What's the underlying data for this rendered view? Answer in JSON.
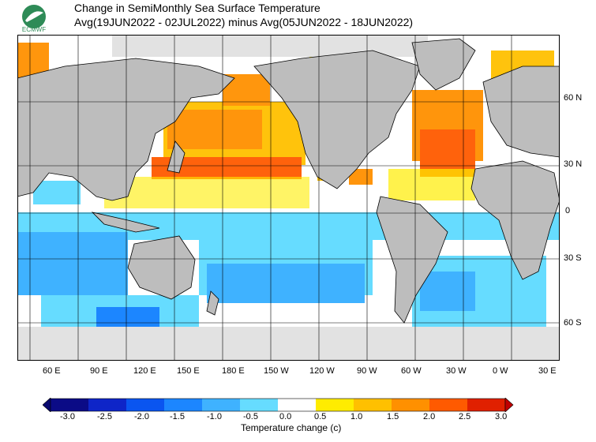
{
  "title": {
    "line1": "Change in SemiMonthly Sea Surface Temperature",
    "line2": "Avg(19JUN2022 - 02JUL2022) minus Avg(05JUN2022 - 18JUN2022)"
  },
  "logo_text": "ECMWF",
  "map": {
    "projection": "equirectangular",
    "lon_range": [
      "40 E",
      "40 E"
    ],
    "lat_range": [
      "90 S",
      "90 N"
    ],
    "grid": true,
    "lon_ticks": [
      "60 E",
      "90 E",
      "120 E",
      "150 E",
      "180 E",
      "150 W",
      "120 W",
      "90 W",
      "60 W",
      "30 W",
      "0 W",
      "30 E"
    ],
    "lat_ticks": [
      "60 N",
      "30 N",
      "0",
      "30 S",
      "60 S"
    ],
    "colors": {
      "land": "#bdbdbd",
      "ice": "#e2e2e2",
      "coast": "#000000"
    }
  },
  "colorbar": {
    "title": "Temperature change  (c)",
    "labels": [
      "-3.0",
      "-2.5",
      "-2.0",
      "-1.5",
      "-1.0",
      "-0.5",
      "0.0",
      "0.5",
      "1.0",
      "1.5",
      "2.0",
      "2.5",
      "3.0"
    ],
    "colors": [
      "#0b0b86",
      "#0e25c8",
      "#0a55f0",
      "#1c86ff",
      "#3fb2ff",
      "#66dcff",
      "#ffffff",
      "#ffec00",
      "#ffc000",
      "#ff9000",
      "#ff5a00",
      "#e02000"
    ],
    "under_color": "#090970",
    "over_color": "#c00000"
  }
}
